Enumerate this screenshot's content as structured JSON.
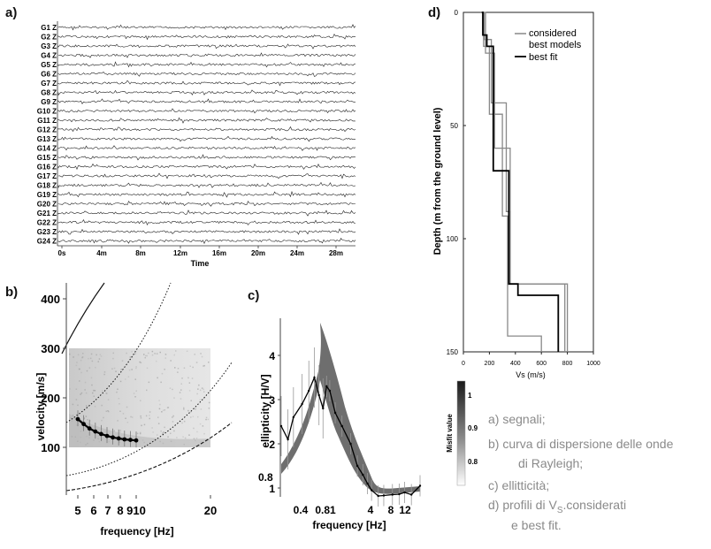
{
  "panels": {
    "a": {
      "letter": "a)",
      "channels": [
        "G1 Z",
        "G2 Z",
        "G3 Z",
        "G4 Z",
        "G5 Z",
        "G6 Z",
        "G7 Z",
        "G8 Z",
        "G9 Z",
        "G10 Z",
        "G11 Z",
        "G12 Z",
        "G13 Z",
        "G14 Z",
        "G15 Z",
        "G16 Z",
        "G17 Z",
        "G18 Z",
        "G19 Z",
        "G20 Z",
        "G21 Z",
        "G22 Z",
        "G23 Z",
        "G24 Z"
      ],
      "time_ticks": [
        "0s",
        "4m",
        "8m",
        "12m",
        "16m",
        "20m",
        "24m",
        "28m"
      ],
      "xlabel": "Time"
    },
    "b": {
      "letter": "b)",
      "ylabel": "velocity [m/s]",
      "xlabel": "frequency [Hz]",
      "yticks": [
        "100",
        "200",
        "300",
        "400"
      ],
      "xticks": [
        "5",
        "6",
        "7",
        "8",
        "910",
        "20"
      ]
    },
    "c": {
      "letter": "c)",
      "ylabel": "ellipticity [H/V]",
      "xlabel": "frequency [Hz]",
      "yticks": [
        "1",
        "2",
        "3",
        "4"
      ],
      "y_extra": "0.8",
      "xticks": [
        "0.4",
        "0.81",
        "4",
        "8",
        "12"
      ]
    },
    "d": {
      "letter": "d)",
      "ylabel": "Depth (m from the ground level)",
      "xlabel": "Vs (m/s)",
      "yticks": [
        "0",
        "50",
        "100",
        "150"
      ],
      "xticks": [
        "0",
        "200",
        "400",
        "600",
        "800",
        "1000"
      ],
      "legend": {
        "considered_l1": "considered",
        "considered_l2": "best models",
        "best": "best fit"
      },
      "colorbar_label": "Misfit value",
      "colorbar_ticks": [
        "1",
        "0.9",
        "0.8"
      ]
    }
  },
  "caption": {
    "a": "a) segnali;",
    "b1": "b) curva di dispersione delle onde",
    "b2": "di Rayleigh;",
    "c": "c) ellitticità;",
    "d1_pre": "d) profili di V",
    "d1_sub": "S",
    "d1_post": ".considerati",
    "d2": "e  best fit."
  },
  "chart_data": [
    {
      "type": "line",
      "title": "",
      "xlabel": "frequency [Hz]",
      "ylabel": "velocity [m/s]",
      "xlim": [
        4,
        25
      ],
      "ylim": [
        60,
        420
      ],
      "series": [
        {
          "x": [
            5,
            5.5,
            6,
            6.5,
            7,
            7.5,
            8,
            8.5,
            9,
            9.5,
            10
          ],
          "y": [
            157,
            147,
            138,
            132,
            127,
            123,
            120,
            118,
            116,
            115,
            114
          ]
        }
      ]
    },
    {
      "type": "line",
      "title": "",
      "xlabel": "frequency [Hz]",
      "ylabel": "ellipticity [H/V]",
      "xlim": [
        0.2,
        20
      ],
      "ylim": [
        0.8,
        4.5
      ],
      "series": [
        {
          "x": [
            0.2,
            0.25,
            0.3,
            0.4,
            0.5,
            0.6,
            0.7,
            0.8,
            0.9,
            1.0,
            1.2,
            1.5,
            2,
            2.5,
            3,
            3.5,
            4,
            5,
            6,
            8,
            10,
            12,
            15,
            20
          ],
          "y": [
            2.4,
            2.1,
            2.6,
            2.9,
            3.2,
            3.5,
            3.1,
            2.8,
            3.3,
            3.2,
            2.7,
            2.4,
            2.0,
            1.5,
            1.3,
            1.1,
            0.95,
            0.82,
            0.83,
            0.85,
            0.86,
            0.9,
            0.85,
            1.05
          ]
        }
      ]
    },
    {
      "type": "line",
      "title": "",
      "xlabel": "Vs (m/s)",
      "ylabel": "Depth (m from the ground level)",
      "xlim": [
        0,
        1000
      ],
      "ylim": [
        150,
        0
      ],
      "series": [
        {
          "name": "best fit",
          "x": [
            140,
            150,
            150,
            180,
            180,
            230,
            230,
            350,
            350,
            420,
            420,
            730,
            730
          ],
          "y": [
            0,
            0,
            10,
            10,
            15,
            15,
            70,
            70,
            120,
            120,
            125,
            125,
            150
          ]
        }
      ]
    }
  ]
}
